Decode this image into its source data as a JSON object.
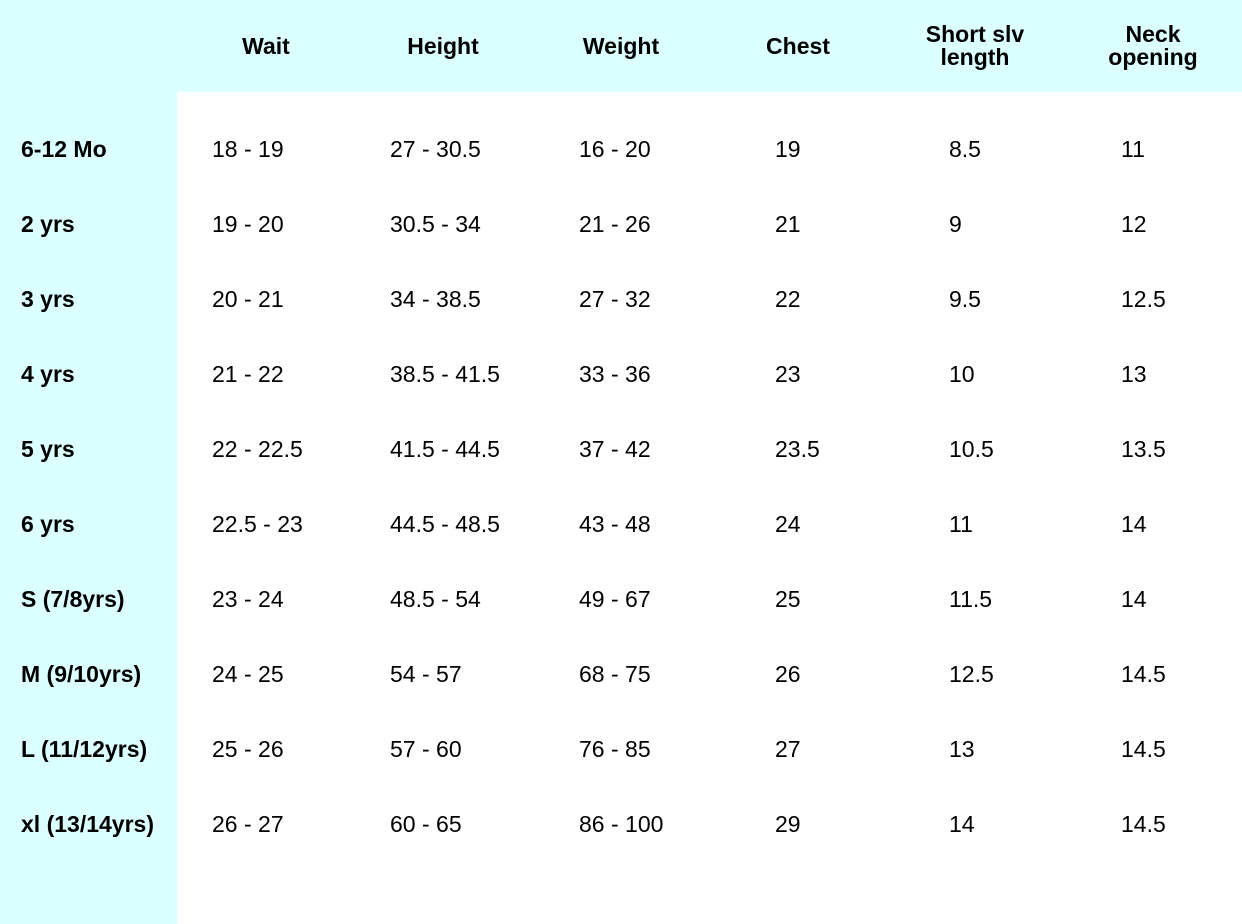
{
  "colors": {
    "header_band": "#dcffff",
    "text": "#000000",
    "body_background": "#ffffff"
  },
  "columns": [
    {
      "label": "Wait"
    },
    {
      "label": "Height"
    },
    {
      "label": "Weight"
    },
    {
      "label": "Chest"
    },
    {
      "label": "Short slv\nlength"
    },
    {
      "label": "Neck\nopening"
    }
  ],
  "rows": [
    {
      "label": "6-12 Mo",
      "values": [
        "18 - 19",
        "27 - 30.5",
        "16 - 20",
        "19",
        "8.5",
        "11"
      ]
    },
    {
      "label": "2 yrs",
      "values": [
        "19 - 20",
        "30.5 - 34",
        "21 - 26",
        "21",
        "9",
        "12"
      ]
    },
    {
      "label": "3 yrs",
      "values": [
        "20 - 21",
        "34 - 38.5",
        "27 - 32",
        "22",
        "9.5",
        "12.5"
      ]
    },
    {
      "label": "4 yrs",
      "values": [
        "21 - 22",
        "38.5 - 41.5",
        "33 - 36",
        "23",
        "10",
        "13"
      ]
    },
    {
      "label": "5 yrs",
      "values": [
        "22 - 22.5",
        "41.5 - 44.5",
        "37 - 42",
        "23.5",
        "10.5",
        "13.5"
      ]
    },
    {
      "label": "6 yrs",
      "values": [
        "22.5 - 23",
        "44.5 - 48.5",
        "43 - 48",
        "24",
        "11",
        "14"
      ]
    },
    {
      "label": "S (7/8yrs)",
      "values": [
        "23 - 24",
        "48.5 - 54",
        "49 - 67",
        "25",
        "11.5",
        "14"
      ]
    },
    {
      "label": "M (9/10yrs)",
      "values": [
        "24 - 25",
        "54 - 57",
        "68 - 75",
        "26",
        "12.5",
        "14.5"
      ]
    },
    {
      "label": "L (11/12yrs)",
      "values": [
        "25 - 26",
        "57 - 60",
        "76 - 85",
        "27",
        "13",
        "14.5"
      ]
    },
    {
      "label": "xl (13/14yrs)",
      "values": [
        "26 - 27",
        "60 - 65",
        "86 - 100",
        "29",
        "14",
        "14.5"
      ]
    }
  ]
}
